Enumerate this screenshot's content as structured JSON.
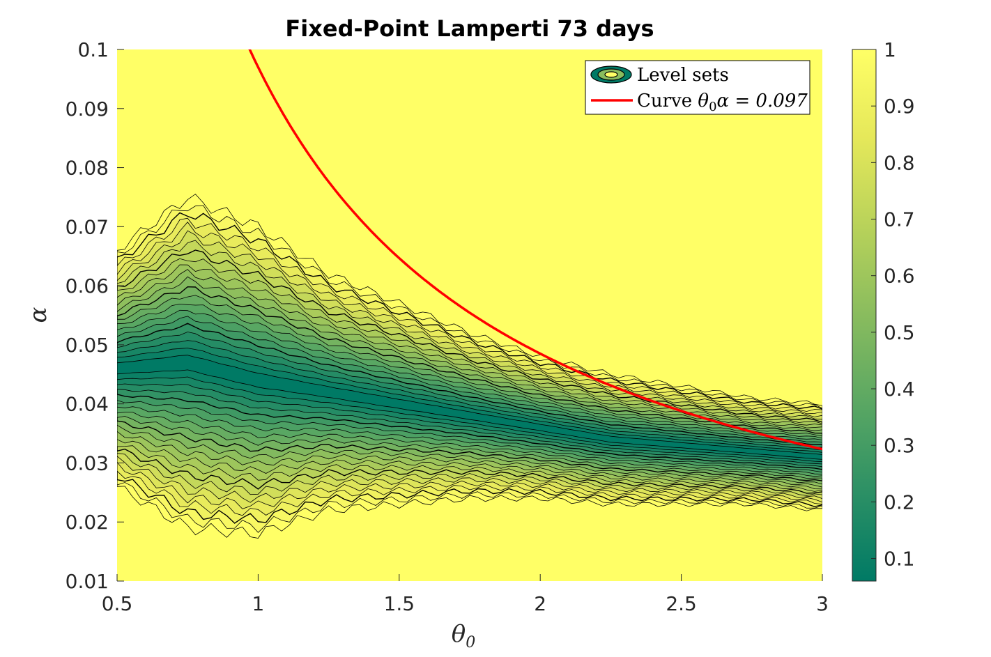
{
  "chart_data": {
    "type": "heatmap",
    "subtype": "filled-contour",
    "title": "Fixed-Point Lamperti 73 days",
    "xlabel": "θ",
    "xlabel_subscript": "0",
    "ylabel": "α",
    "xlim": [
      0.5,
      3
    ],
    "ylim": [
      0.01,
      0.1
    ],
    "xticks": [
      "0.5",
      "1",
      "1.5",
      "2",
      "2.5",
      "3"
    ],
    "yticks": [
      "0.01",
      "0.02",
      "0.03",
      "0.04",
      "0.05",
      "0.06",
      "0.07",
      "0.08",
      "0.09",
      "0.1"
    ],
    "colorbar": {
      "range": [
        0.06,
        1
      ],
      "ticks": [
        "0.1",
        "0.2",
        "0.3",
        "0.4",
        "0.5",
        "0.6",
        "0.7",
        "0.8",
        "0.9",
        "1"
      ],
      "colormap": [
        "#007a65",
        "#2c9065",
        "#5aa763",
        "#89bc5e",
        "#b8d25a",
        "#e5e85a",
        "#ffff66"
      ]
    },
    "valley": {
      "center_alpha": [
        0.046,
        0.047,
        0.044,
        0.042,
        0.04,
        0.038,
        0.036,
        0.034,
        0.033,
        0.032,
        0.031
      ],
      "theta": [
        0.5,
        0.75,
        1.0,
        1.25,
        1.5,
        1.75,
        2.0,
        2.25,
        2.5,
        2.75,
        3.0
      ],
      "half_width_alpha": [
        0.02,
        0.028,
        0.026,
        0.02,
        0.017,
        0.014,
        0.012,
        0.011,
        0.01,
        0.009,
        0.009
      ]
    },
    "curve": {
      "product": 0.097,
      "color": "#ff0000"
    },
    "legend": {
      "position": "top-right",
      "entries": [
        {
          "label": "Level sets",
          "kind": "contour-swatch"
        },
        {
          "label": "Curve θ0α = 0.097",
          "label_prefix": "Curve ",
          "label_math": "θ",
          "label_sub": "0",
          "label_suffix": "α = 0.097",
          "kind": "line",
          "color": "#ff0000"
        }
      ]
    },
    "grid": false
  }
}
